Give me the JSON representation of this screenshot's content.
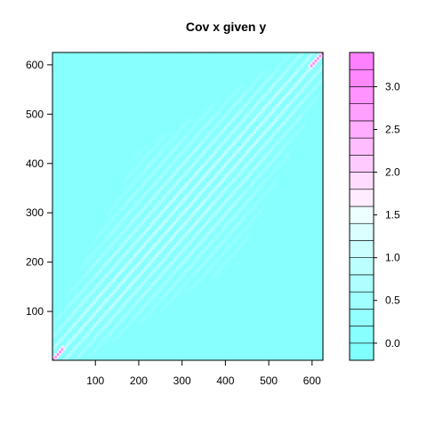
{
  "chart_data": {
    "type": "heatmap",
    "title": "Cov x given y",
    "xlabel": "",
    "ylabel": "",
    "xlim": [
      1,
      625
    ],
    "ylim": [
      1,
      625
    ],
    "x_ticks": [
      100,
      200,
      300,
      400,
      500,
      600
    ],
    "y_ticks": [
      100,
      200,
      300,
      400,
      500,
      600
    ],
    "x_tick_labels": [
      "100",
      "200",
      "300",
      "400",
      "500",
      "600"
    ],
    "y_tick_labels": [
      "100",
      "200",
      "300",
      "400",
      "500",
      "600"
    ],
    "colorbar": {
      "range": [
        -0.2,
        3.4
      ],
      "breaks": [
        -0.2,
        0.0,
        0.2,
        0.4,
        0.6,
        0.8,
        1.0,
        1.2,
        1.4,
        1.6,
        1.8,
        2.0,
        2.2,
        2.4,
        2.6,
        2.8,
        3.0,
        3.2,
        3.4
      ],
      "tick_values": [
        0.0,
        0.5,
        1.0,
        1.5,
        2.0,
        2.5,
        3.0
      ],
      "tick_labels": [
        "0.0",
        "0.5",
        "1.0",
        "1.5",
        "2.0",
        "2.5",
        "3.0"
      ],
      "colors": [
        "#80FFFF",
        "#88FFFF",
        "#93FFFF",
        "#A0FFFF",
        "#AEFFFF",
        "#BCFFFF",
        "#CBFFFF",
        "#DBFFFF",
        "#EDFFFF",
        "#FFEDFF",
        "#FFDBFF",
        "#FFCBFF",
        "#FFBCFF",
        "#FFAEFF",
        "#FFA0FF",
        "#FF93FF",
        "#FF88FF",
        "#FF80FF"
      ]
    },
    "pattern": {
      "description": "covariance matrix; background near 0, diagonal band of alternating stripes; values up to ~3.3 near diagonal corners",
      "base_value": 0.05,
      "stripe_value": 0.9,
      "stripe_period": 25,
      "band_half_width": 330,
      "diagonal_value": 1.6
    }
  }
}
